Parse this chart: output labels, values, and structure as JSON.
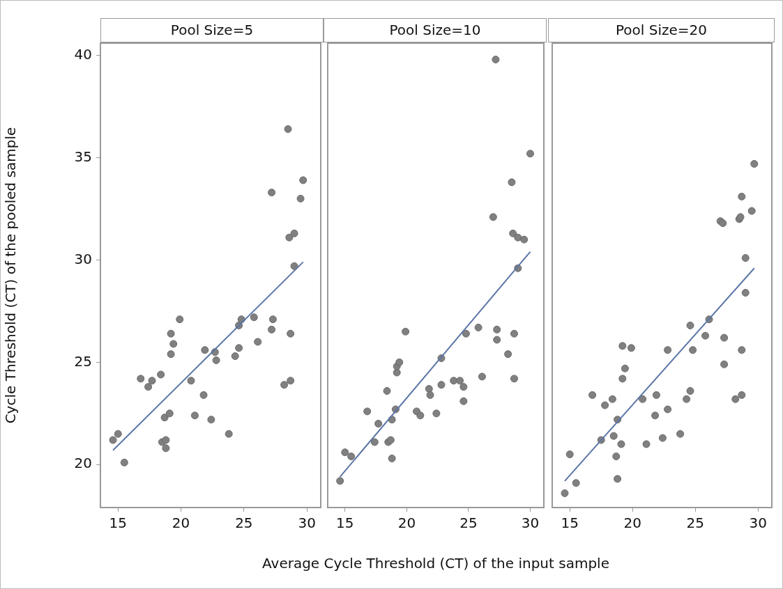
{
  "chart_data": [
    {
      "type": "scatter",
      "title": "Pool Size=5",
      "ylabel": "Cycle Threshold (CT) of the pooled sample",
      "xlim": [
        13.6,
        31.1
      ],
      "xticks": [
        15,
        20,
        25,
        30
      ],
      "ylim": [
        17.9,
        40.6
      ],
      "yticks": [
        20,
        25,
        30,
        35,
        40
      ],
      "grid": false,
      "legend": false,
      "series": [
        {
          "marker": "circle",
          "color": "#808080",
          "x": [
            14.6,
            15.0,
            15.5,
            16.8,
            17.7,
            17.4,
            18.4,
            18.5,
            18.8,
            18.8,
            18.7,
            19.1,
            19.2,
            19.4,
            19.2,
            19.9,
            20.8,
            21.1,
            21.8,
            21.9,
            22.4,
            22.7,
            22.8,
            23.8,
            24.3,
            24.6,
            24.6,
            24.8,
            25.8,
            26.1,
            27.2,
            27.3,
            27.2,
            28.2,
            28.7,
            28.7,
            28.5,
            28.6,
            29.0,
            29.0,
            29.5,
            29.7
          ],
          "values": [
            21.2,
            21.5,
            20.1,
            24.2,
            24.1,
            23.8,
            24.4,
            21.1,
            21.2,
            20.8,
            22.3,
            22.5,
            26.4,
            25.9,
            25.4,
            27.1,
            24.1,
            22.4,
            23.4,
            25.6,
            22.2,
            25.5,
            25.1,
            21.5,
            25.3,
            25.7,
            26.8,
            27.1,
            27.2,
            26.0,
            33.3,
            27.1,
            26.6,
            23.9,
            24.1,
            26.4,
            36.4,
            31.1,
            31.3,
            29.7,
            33.0,
            33.9
          ]
        },
        {
          "type": "line",
          "color": "#5b75a6",
          "x": [
            14.6,
            29.7
          ],
          "values": [
            20.7,
            29.9
          ]
        }
      ]
    },
    {
      "type": "scatter",
      "title": "Pool Size=10",
      "xlabel": "Average Cycle Threshold (CT) of the input sample",
      "xlim": [
        13.6,
        31.1
      ],
      "xticks": [
        15,
        20,
        25,
        30
      ],
      "ylim": [
        17.9,
        40.6
      ],
      "tick_labels": "x",
      "grid": false,
      "legend": false,
      "series": [
        {
          "marker": "circle",
          "color": "#808080",
          "x": [
            14.6,
            15.0,
            15.5,
            16.8,
            17.7,
            17.4,
            18.4,
            18.5,
            18.7,
            18.8,
            18.8,
            19.1,
            19.2,
            19.2,
            19.4,
            19.9,
            20.8,
            21.1,
            21.8,
            21.9,
            22.4,
            22.8,
            22.8,
            23.8,
            24.3,
            24.6,
            24.6,
            24.8,
            25.8,
            26.1,
            27.0,
            27.2,
            27.3,
            27.3,
            28.2,
            28.5,
            28.7,
            28.7,
            28.6,
            29.0,
            29.5,
            29.0,
            30.0
          ],
          "values": [
            19.2,
            20.6,
            20.4,
            22.6,
            22.0,
            21.1,
            23.6,
            21.1,
            21.2,
            20.3,
            22.2,
            22.7,
            24.5,
            24.8,
            25.0,
            26.5,
            22.6,
            22.4,
            23.7,
            23.4,
            22.5,
            25.2,
            23.9,
            24.1,
            24.1,
            23.8,
            23.1,
            26.4,
            26.7,
            24.3,
            32.1,
            39.8,
            26.6,
            26.1,
            25.4,
            33.8,
            24.2,
            26.4,
            31.3,
            31.1,
            31.0,
            29.6,
            35.2
          ]
        },
        {
          "type": "line",
          "color": "#5b75a6",
          "x": [
            14.6,
            30.0
          ],
          "values": [
            19.4,
            30.4
          ]
        }
      ]
    },
    {
      "type": "scatter",
      "title": "Pool Size=20",
      "xlim": [
        13.6,
        31.1
      ],
      "xticks": [
        15,
        20,
        25,
        30
      ],
      "ylim": [
        17.9,
        40.6
      ],
      "tick_labels": "x",
      "grid": false,
      "legend": false,
      "series": [
        {
          "marker": "circle",
          "color": "#808080",
          "x": [
            14.6,
            15.0,
            15.5,
            16.8,
            17.8,
            17.5,
            18.4,
            18.5,
            18.7,
            18.8,
            18.8,
            19.1,
            19.2,
            19.4,
            19.2,
            19.9,
            20.8,
            21.1,
            21.9,
            21.8,
            22.4,
            22.8,
            22.8,
            23.8,
            24.3,
            24.6,
            24.6,
            24.8,
            25.8,
            26.1,
            27.0,
            27.2,
            27.3,
            27.3,
            28.2,
            28.5,
            28.6,
            28.7,
            28.7,
            28.7,
            29.0,
            29.0,
            29.5,
            29.7
          ],
          "values": [
            18.6,
            20.5,
            19.1,
            23.4,
            22.9,
            21.2,
            23.2,
            21.4,
            20.4,
            19.3,
            22.2,
            21.0,
            25.8,
            24.7,
            24.2,
            25.7,
            23.2,
            21.0,
            23.4,
            22.4,
            21.3,
            25.6,
            22.7,
            21.5,
            23.2,
            23.6,
            26.8,
            25.6,
            26.3,
            27.1,
            31.9,
            31.8,
            26.2,
            24.9,
            23.2,
            32.0,
            32.1,
            23.4,
            25.6,
            33.1,
            30.1,
            28.4,
            32.4,
            34.7
          ]
        },
        {
          "type": "line",
          "color": "#5b75a6",
          "x": [
            14.6,
            29.7
          ],
          "values": [
            19.2,
            29.6
          ]
        }
      ]
    }
  ]
}
